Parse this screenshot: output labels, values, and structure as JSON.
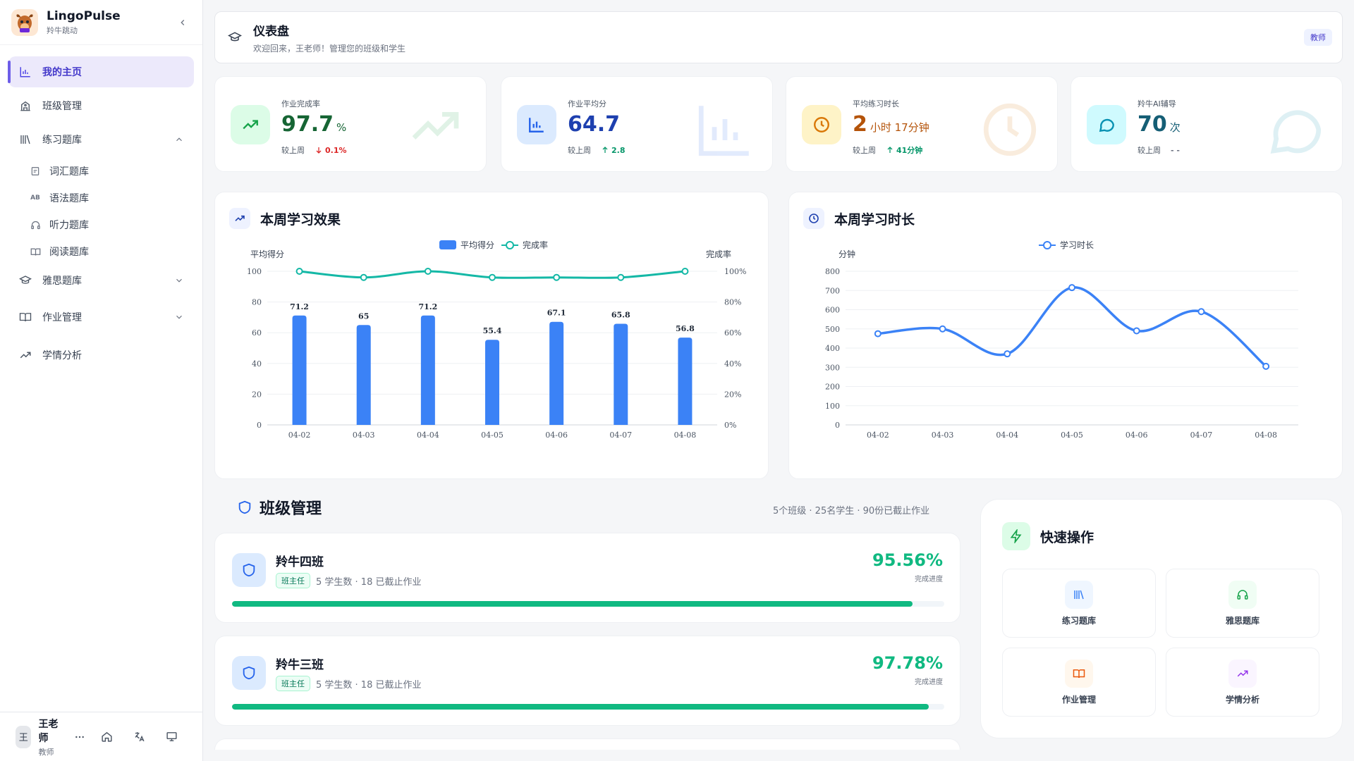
{
  "brand": {
    "name": "LingoPulse",
    "sub": "羚牛跳动"
  },
  "sidebar": {
    "items": [
      {
        "label": "我的主页"
      },
      {
        "label": "班级管理"
      },
      {
        "label": "练习题库"
      },
      {
        "label": "雅思题库"
      },
      {
        "label": "作业管理"
      },
      {
        "label": "学情分析"
      }
    ],
    "sub_items": [
      {
        "label": "词汇题库"
      },
      {
        "label": "语法题库",
        "badge": "AB"
      },
      {
        "label": "听力题库"
      },
      {
        "label": "阅读题库"
      }
    ]
  },
  "user": {
    "avatar": "王",
    "name": "王老师",
    "role": "教师"
  },
  "header": {
    "title": "仪表盘",
    "subtitle": "欢迎回来，王老师！管理您的班级和学生",
    "badge": "教师"
  },
  "stats": [
    {
      "label": "作业完成率",
      "value": "97.7",
      "unit": "%",
      "compare": "较上周",
      "delta": "0.1%",
      "direction": "down",
      "color": "#166534",
      "delta_color": "#dc2626"
    },
    {
      "label": "作业平均分",
      "value": "64.7",
      "unit": "",
      "compare": "较上周",
      "delta": "2.8",
      "direction": "up",
      "color": "#1e40af",
      "delta_color": "#059669"
    },
    {
      "label": "平均练习时长",
      "value": "2",
      "unit": "小时 17分钟",
      "compare": "较上周",
      "delta": "41分钟",
      "direction": "up",
      "color": "#b45309",
      "delta_color": "#059669"
    },
    {
      "label": "羚牛AI辅导",
      "value": "70",
      "unit": "次",
      "compare": "较上周",
      "delta": "- -",
      "direction": "none",
      "color": "#155e75",
      "delta_color": "#6b7280"
    }
  ],
  "chart_data": [
    {
      "type": "bar",
      "title": "本周学习效果",
      "categories": [
        "04-02",
        "04-03",
        "04-04",
        "04-05",
        "04-06",
        "04-07",
        "04-08"
      ],
      "series": [
        {
          "name": "平均得分",
          "type": "bar",
          "values": [
            71.2,
            65,
            71.2,
            55.4,
            67.1,
            65.8,
            56.8
          ],
          "color": "#3b82f6",
          "axis": "left"
        },
        {
          "name": "完成率",
          "type": "line",
          "values": [
            100,
            96,
            100,
            96,
            96,
            96,
            100
          ],
          "color": "#14b8a6",
          "axis": "right"
        }
      ],
      "ylabel": "平均得分",
      "y2label": "完成率",
      "ylim": [
        0,
        100
      ],
      "y2lim": [
        0,
        100
      ],
      "yticks": [
        "0",
        "20",
        "40",
        "60",
        "80",
        "100"
      ],
      "y2ticks": [
        "0%",
        "20%",
        "40%",
        "60%",
        "80%",
        "100%"
      ],
      "legend": "top-center"
    },
    {
      "type": "line",
      "title": "本周学习时长",
      "categories": [
        "04-02",
        "04-03",
        "04-04",
        "04-05",
        "04-06",
        "04-07",
        "04-08"
      ],
      "series": [
        {
          "name": "学习时长",
          "values": [
            475,
            500,
            370,
            715,
            490,
            590,
            305
          ],
          "color": "#3b82f6"
        }
      ],
      "ylabel": "分钟",
      "ylim": [
        0,
        800
      ],
      "yticks": [
        "0",
        "100",
        "200",
        "300",
        "400",
        "500",
        "600",
        "700",
        "800"
      ],
      "legend": "top-center"
    }
  ],
  "classes": {
    "title": "班级管理",
    "summary": "5个班级 · 25名学生 · 90份已截止作业",
    "items": [
      {
        "name": "羚牛四班",
        "tag": "班主任",
        "meta": "5 学生数 · 18 已截止作业",
        "pct": "95.56%",
        "pct_label": "完成进度",
        "progress": 0.9556
      },
      {
        "name": "羚牛三班",
        "tag": "班主任",
        "meta": "5 学生数 · 18 已截止作业",
        "pct": "97.78%",
        "pct_label": "完成进度",
        "progress": 0.9778
      }
    ]
  },
  "quick": {
    "title": "快速操作",
    "items": [
      {
        "label": "练习题库",
        "icon": "library-icon",
        "color": "#3b82f6",
        "bg": "#eff6ff"
      },
      {
        "label": "雅思题库",
        "icon": "headphones-icon",
        "color": "#16a34a",
        "bg": "#f0fdf4"
      },
      {
        "label": "作业管理",
        "icon": "book-open-icon",
        "color": "#ea580c",
        "bg": "#fff7ed"
      },
      {
        "label": "学情分析",
        "icon": "trending-up-icon",
        "color": "#9333ea",
        "bg": "#faf5ff"
      }
    ]
  }
}
